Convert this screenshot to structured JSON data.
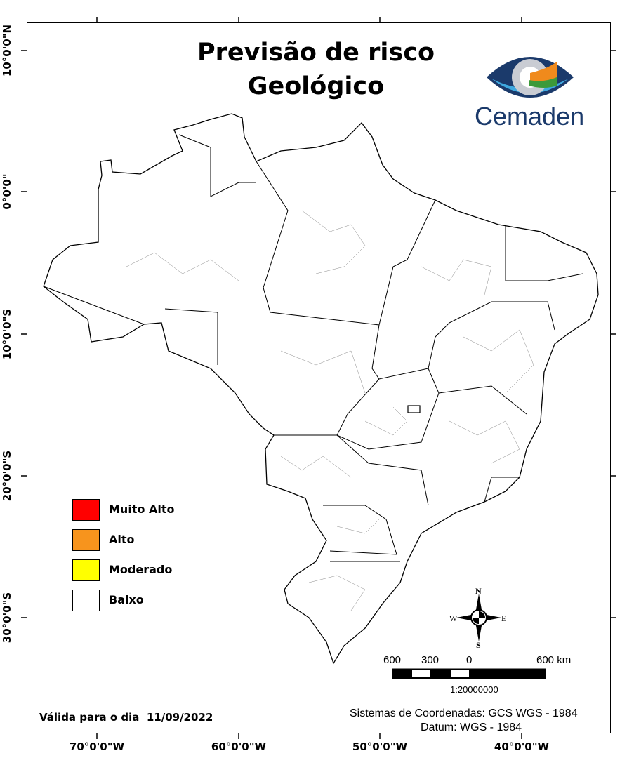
{
  "title": {
    "line1": "Previsão de risco",
    "line2": "Geológico"
  },
  "logo": {
    "text": "Cemaden",
    "colors": {
      "dark": "#1b3a6b",
      "light": "#3fa9e0",
      "green": "#3c9a3a",
      "orange": "#f08a1c"
    }
  },
  "axes": {
    "latitude_labels": [
      "10°0'0\"N",
      "0°0'0\"",
      "10°0'0\"S",
      "20°0'0\"S",
      "30°0'0\"S"
    ],
    "longitude_labels": [
      "70°0'0\"W",
      "60°0'0\"W",
      "50°0'0\"W",
      "40°0'0\"W"
    ]
  },
  "legend": {
    "items": [
      {
        "label": "Muito Alto",
        "color": "#ff0000"
      },
      {
        "label": "Alto",
        "color": "#f7941d"
      },
      {
        "label": "Moderado",
        "color": "#ffff00"
      },
      {
        "label": "Baixo",
        "color": "#ffffff"
      }
    ]
  },
  "map": {
    "region_fill": "#ffffff",
    "current_risk_level": "Baixo"
  },
  "compass": {
    "n": "N",
    "s": "S",
    "e": "E",
    "w": "W"
  },
  "scale_bar": {
    "labels": [
      "600",
      "300",
      "0",
      "600 km"
    ],
    "ratio": "1:20000000"
  },
  "validity": "Válida para o dia  11/09/2022",
  "coordinate_system": "Sistemas de Coordenadas: GCS WGS - 1984",
  "datum": "Datum: WGS - 1984"
}
